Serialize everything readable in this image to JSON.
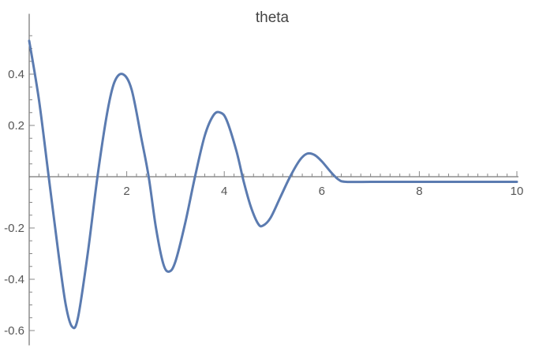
{
  "chart_data": {
    "type": "line",
    "title": "theta",
    "xlabel": "",
    "ylabel": "",
    "xlim": [
      0,
      10
    ],
    "ylim": [
      -0.63,
      0.58
    ],
    "xticks": [
      2,
      4,
      6,
      8,
      10
    ],
    "xtick_labels": [
      "2",
      "4",
      "6",
      "8",
      "10"
    ],
    "yticks": [
      -0.6,
      -0.4,
      -0.2,
      0.2,
      0.4
    ],
    "ytick_labels": [
      "-0.6",
      "-0.4",
      "-0.2",
      "0.2",
      "0.4"
    ],
    "grid": false,
    "series": [
      {
        "color": "#5b7bb0",
        "points": [
          [
            0.0,
            0.53
          ],
          [
            0.2,
            0.3
          ],
          [
            0.4,
            0.0
          ],
          [
            0.6,
            -0.3
          ],
          [
            0.75,
            -0.5
          ],
          [
            0.88,
            -0.585
          ],
          [
            1.0,
            -0.55
          ],
          [
            1.2,
            -0.3
          ],
          [
            1.4,
            0.0
          ],
          [
            1.6,
            0.25
          ],
          [
            1.75,
            0.37
          ],
          [
            1.92,
            0.4
          ],
          [
            2.1,
            0.34
          ],
          [
            2.3,
            0.15
          ],
          [
            2.45,
            0.0
          ],
          [
            2.6,
            -0.2
          ],
          [
            2.75,
            -0.34
          ],
          [
            2.87,
            -0.37
          ],
          [
            3.0,
            -0.33
          ],
          [
            3.2,
            -0.18
          ],
          [
            3.4,
            0.0
          ],
          [
            3.6,
            0.16
          ],
          [
            3.78,
            0.24
          ],
          [
            3.92,
            0.25
          ],
          [
            4.05,
            0.22
          ],
          [
            4.25,
            0.1
          ],
          [
            4.4,
            -0.02
          ],
          [
            4.55,
            -0.12
          ],
          [
            4.7,
            -0.185
          ],
          [
            4.8,
            -0.19
          ],
          [
            4.95,
            -0.16
          ],
          [
            5.15,
            -0.08
          ],
          [
            5.35,
            0.0
          ],
          [
            5.55,
            0.065
          ],
          [
            5.7,
            0.09
          ],
          [
            5.85,
            0.085
          ],
          [
            6.0,
            0.06
          ],
          [
            6.2,
            0.015
          ],
          [
            6.35,
            -0.012
          ],
          [
            6.5,
            -0.02
          ],
          [
            7.0,
            -0.02
          ],
          [
            8.0,
            -0.02
          ],
          [
            9.0,
            -0.02
          ],
          [
            10.0,
            -0.02
          ]
        ]
      }
    ]
  }
}
